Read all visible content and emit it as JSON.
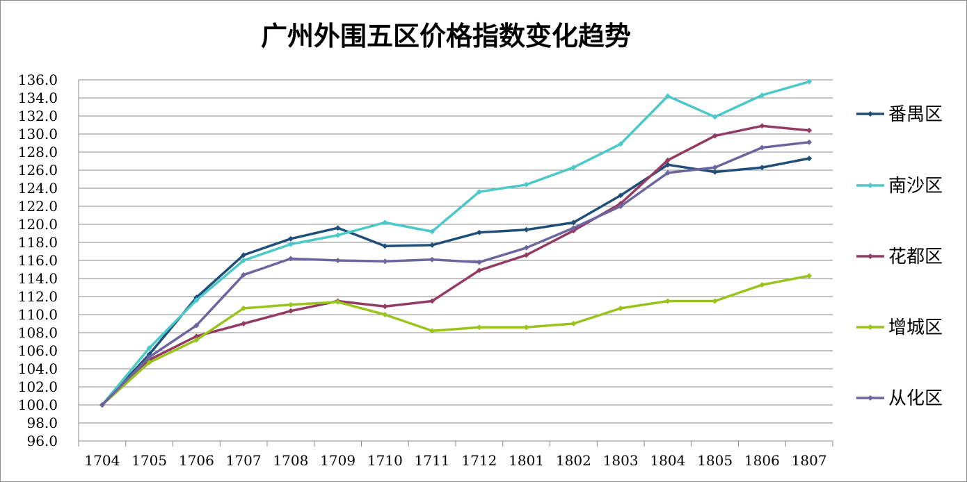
{
  "chart_data": {
    "type": "line",
    "title": "广州外围五区价格指数变化趋势",
    "xlabel": "",
    "ylabel": "",
    "ylim": [
      96.0,
      136.0
    ],
    "ytick_step": 2.0,
    "y_tick_labels": [
      "96.0",
      "98.0",
      "100.0",
      "102.0",
      "104.0",
      "106.0",
      "108.0",
      "110.0",
      "112.0",
      "114.0",
      "116.0",
      "118.0",
      "120.0",
      "122.0",
      "124.0",
      "126.0",
      "128.0",
      "130.0",
      "132.0",
      "134.0",
      "136.0"
    ],
    "grid": true,
    "legend_position": "right",
    "categories": [
      "1704",
      "1705",
      "1706",
      "1707",
      "1708",
      "1709",
      "1710",
      "1711",
      "1712",
      "1801",
      "1802",
      "1803",
      "1804",
      "1805",
      "1806",
      "1807"
    ],
    "series": [
      {
        "name": "番禺区",
        "color": "#1f4e79",
        "values": [
          100.0,
          105.6,
          111.9,
          116.6,
          118.4,
          119.6,
          117.6,
          117.7,
          119.1,
          119.4,
          120.2,
          123.2,
          126.6,
          125.8,
          126.3,
          127.3
        ]
      },
      {
        "name": "南沙区",
        "color": "#4bc8c8",
        "values": [
          100.0,
          106.3,
          111.6,
          116.0,
          117.8,
          118.8,
          120.2,
          119.2,
          123.6,
          124.4,
          126.3,
          128.9,
          134.2,
          131.9,
          134.3,
          135.8
        ]
      },
      {
        "name": "花都区",
        "color": "#943b64",
        "values": [
          100.0,
          105.0,
          107.6,
          109.0,
          110.4,
          111.5,
          110.9,
          111.5,
          114.9,
          116.6,
          119.3,
          122.3,
          127.1,
          129.8,
          130.9,
          130.4
        ]
      },
      {
        "name": "增城区",
        "color": "#9ac31c",
        "values": [
          100.0,
          104.7,
          107.2,
          110.7,
          111.1,
          111.4,
          110.0,
          108.2,
          108.6,
          108.6,
          109.0,
          110.7,
          111.5,
          111.5,
          113.3,
          114.3
        ]
      },
      {
        "name": "从化区",
        "color": "#6c66a0",
        "values": [
          100.0,
          105.3,
          108.8,
          114.4,
          116.2,
          116.0,
          115.9,
          116.1,
          115.8,
          117.4,
          119.6,
          122.0,
          125.7,
          126.3,
          128.5,
          129.1
        ]
      }
    ]
  }
}
